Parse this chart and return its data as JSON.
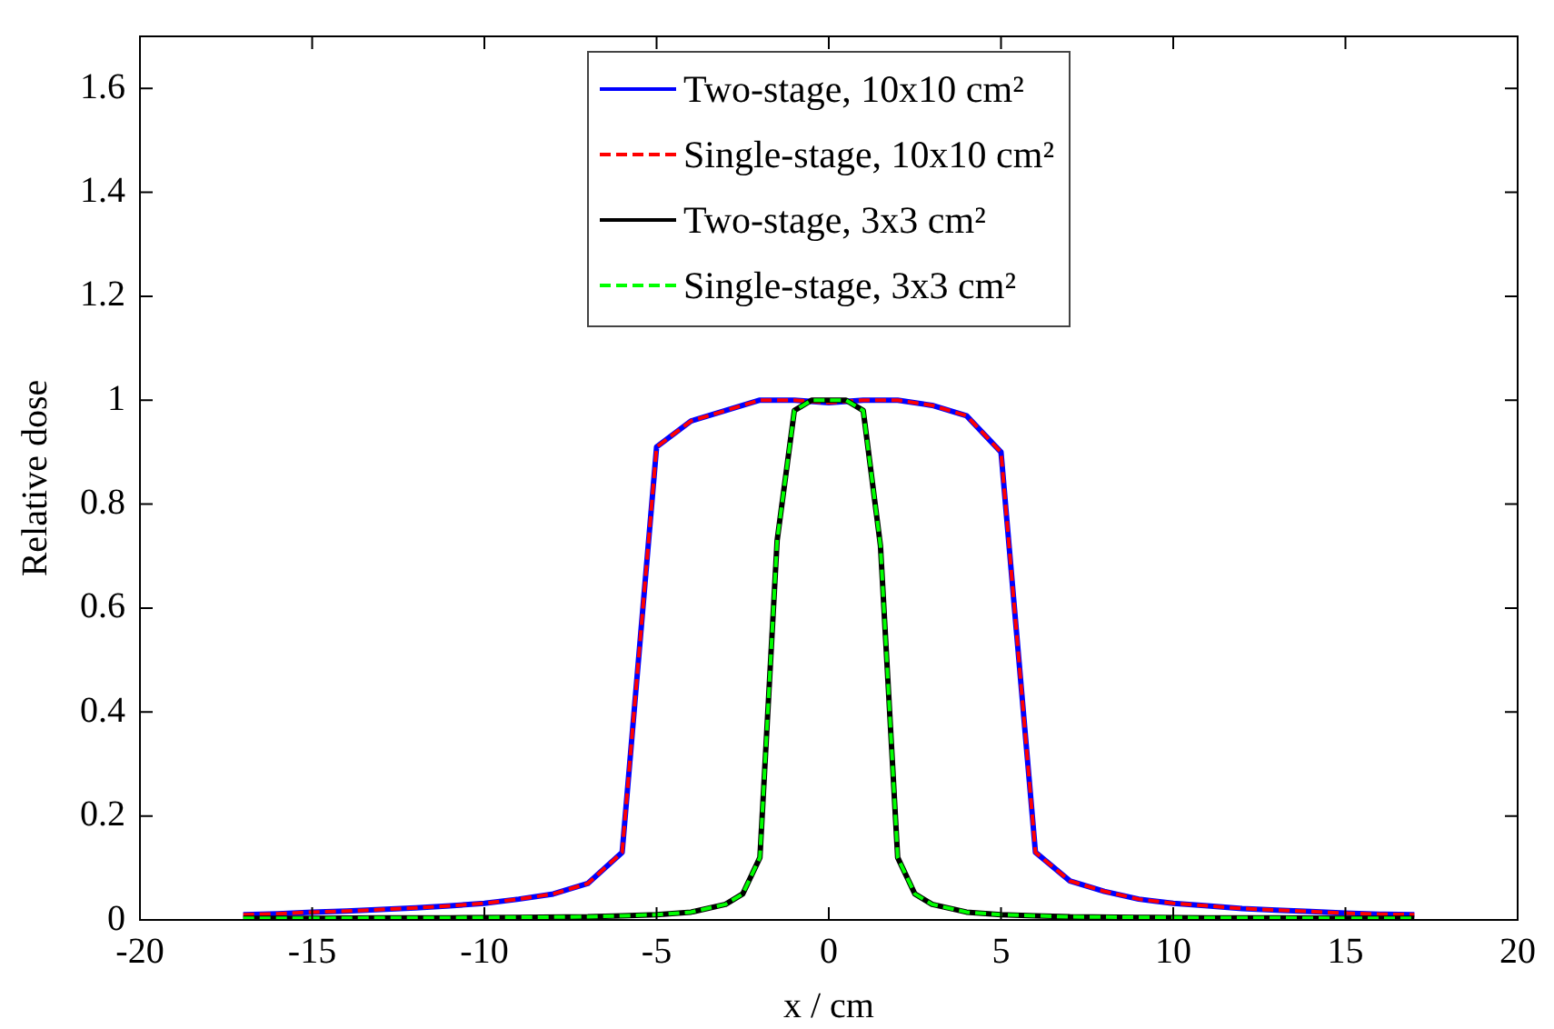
{
  "chart_data": {
    "type": "line",
    "xlabel": "x / cm",
    "ylabel": "Relative dose",
    "xlim": [
      -20,
      20
    ],
    "xticks": [
      -20,
      -15,
      -10,
      -5,
      0,
      5,
      10,
      15,
      20
    ],
    "ylim": [
      0,
      1.7
    ],
    "yticks": [
      0,
      0.2,
      0.4,
      0.6,
      0.8,
      1,
      1.2,
      1.4,
      1.6
    ],
    "grid": false,
    "legend": "top",
    "marker": "none",
    "series": [
      {
        "name": "Two-stage, 10x10 cm²",
        "color": "#0000ff",
        "line_style": "solid",
        "x": [
          -17,
          -16,
          -15,
          -14,
          -13,
          -12,
          -11,
          -10,
          -9,
          -8,
          -7,
          -6,
          -5,
          -4,
          -3,
          -2,
          -1,
          0,
          1,
          2,
          3,
          4,
          5,
          6,
          7,
          8,
          9,
          10,
          11,
          12,
          13,
          14,
          15,
          16,
          17
        ],
        "values": [
          0.01,
          0.012,
          0.015,
          0.017,
          0.02,
          0.023,
          0.027,
          0.032,
          0.04,
          0.05,
          0.07,
          0.13,
          0.91,
          0.96,
          0.98,
          1.0,
          1.0,
          0.995,
          1.0,
          1.0,
          0.99,
          0.97,
          0.9,
          0.13,
          0.075,
          0.055,
          0.04,
          0.032,
          0.027,
          0.022,
          0.019,
          0.016,
          0.013,
          0.011,
          0.01
        ]
      },
      {
        "name": "Single-stage, 10x10 cm²",
        "color": "#ff0000",
        "line_style": "dashed",
        "x": [
          -17,
          -16,
          -15,
          -14,
          -13,
          -12,
          -11,
          -10,
          -9,
          -8,
          -7,
          -6,
          -5,
          -4,
          -3,
          -2,
          -1,
          0,
          1,
          2,
          3,
          4,
          5,
          6,
          7,
          8,
          9,
          10,
          11,
          12,
          13,
          14,
          15,
          16,
          17
        ],
        "values": [
          0.01,
          0.012,
          0.015,
          0.017,
          0.02,
          0.023,
          0.027,
          0.032,
          0.04,
          0.05,
          0.07,
          0.13,
          0.91,
          0.96,
          0.98,
          1.0,
          1.0,
          0.995,
          1.0,
          1.0,
          0.99,
          0.97,
          0.9,
          0.13,
          0.075,
          0.055,
          0.04,
          0.032,
          0.027,
          0.022,
          0.019,
          0.016,
          0.013,
          0.011,
          0.01
        ]
      },
      {
        "name": "Two-stage, 3x3 cm²",
        "color": "#000000",
        "line_style": "solid",
        "x": [
          -17,
          -15,
          -13,
          -11,
          -9,
          -7,
          -6,
          -5,
          -4,
          -3,
          -2.5,
          -2,
          -1.5,
          -1,
          -0.5,
          0,
          0.5,
          1,
          1.5,
          2,
          2.5,
          3,
          4,
          5,
          6,
          7,
          9,
          11,
          13,
          15,
          17
        ],
        "values": [
          0.003,
          0.003,
          0.004,
          0.004,
          0.005,
          0.006,
          0.008,
          0.01,
          0.015,
          0.03,
          0.05,
          0.12,
          0.73,
          0.98,
          1.0,
          1.0,
          1.0,
          0.98,
          0.72,
          0.12,
          0.05,
          0.03,
          0.015,
          0.01,
          0.008,
          0.006,
          0.005,
          0.004,
          0.004,
          0.003,
          0.003
        ]
      },
      {
        "name": "Single-stage, 3x3 cm²",
        "color": "#00ff00",
        "line_style": "dashed",
        "x": [
          -17,
          -15,
          -13,
          -11,
          -9,
          -7,
          -6,
          -5,
          -4,
          -3,
          -2.5,
          -2,
          -1.5,
          -1,
          -0.5,
          0,
          0.5,
          1,
          1.5,
          2,
          2.5,
          3,
          4,
          5,
          6,
          7,
          9,
          11,
          13,
          15,
          17
        ],
        "values": [
          0.003,
          0.003,
          0.004,
          0.004,
          0.005,
          0.006,
          0.008,
          0.01,
          0.015,
          0.03,
          0.05,
          0.12,
          0.73,
          0.98,
          1.0,
          1.0,
          1.0,
          0.98,
          0.72,
          0.12,
          0.05,
          0.03,
          0.015,
          0.01,
          0.008,
          0.006,
          0.005,
          0.004,
          0.004,
          0.003,
          0.003
        ]
      }
    ]
  }
}
